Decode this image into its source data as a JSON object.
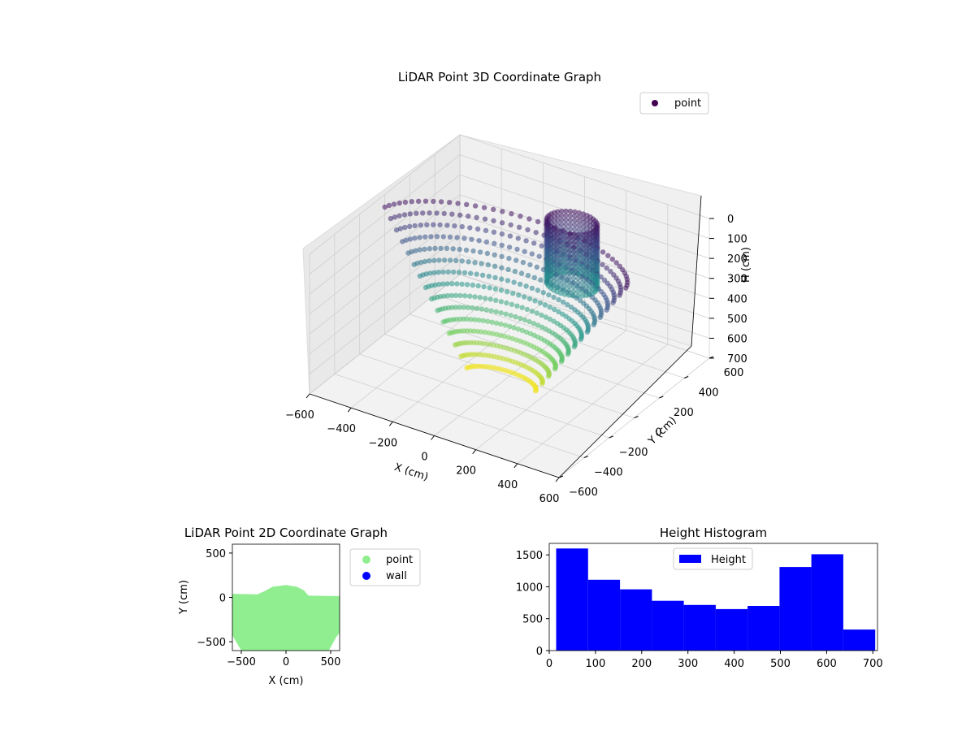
{
  "chart_data": [
    {
      "type": "scatter",
      "projection": "3d",
      "title": "LiDAR Point 3D Coordinate Graph",
      "xlabel": "X (cm)",
      "ylabel": "Y (cm)",
      "zlabel": "H (cm)",
      "xlim": [
        -600,
        600
      ],
      "ylim": [
        -600,
        600
      ],
      "zlim": [
        0,
        700
      ],
      "z_inverted": true,
      "xticks": [
        -600,
        -400,
        -200,
        0,
        200,
        400,
        600
      ],
      "yticks": [
        -600,
        -400,
        -200,
        0,
        200,
        400,
        600
      ],
      "zticks": [
        0,
        100,
        200,
        300,
        400,
        500,
        600,
        700
      ],
      "colormap": "viridis",
      "grid": true,
      "legend": {
        "position": "upper-right",
        "entries": [
          {
            "label": "point",
            "color": "#440154"
          }
        ]
      },
      "description_series": [
        {
          "name": "point",
          "shape": "curved sheet of points spanning X -600..600, heights 0..700, dark purple at the top (low H) to yellow at the bottom (high H)"
        }
      ]
    },
    {
      "type": "scatter",
      "title": "LiDAR Point 2D Coordinate Graph",
      "xlabel": "X (cm)",
      "ylabel": "Y (cm)",
      "xlim": [
        -600,
        600
      ],
      "ylim": [
        -600,
        600
      ],
      "xticks": [
        -500,
        0,
        500
      ],
      "yticks": [
        -500,
        0,
        500
      ],
      "legend": {
        "position": "outside-right",
        "entries": [
          {
            "label": "point",
            "color": "#90ee90"
          },
          {
            "label": "wall",
            "color": "#0000ff"
          }
        ]
      },
      "series": [
        {
          "name": "point",
          "color": "#90ee90",
          "outline": [
            [
              -600,
              40
            ],
            [
              -320,
              35
            ],
            [
              -240,
              70
            ],
            [
              -150,
              120
            ],
            [
              0,
              140
            ],
            [
              120,
              120
            ],
            [
              200,
              80
            ],
            [
              250,
              20
            ],
            [
              600,
              15
            ],
            [
              600,
              -400
            ],
            [
              560,
              -450
            ],
            [
              480,
              -600
            ],
            [
              -500,
              -600
            ],
            [
              -600,
              -430
            ]
          ]
        }
      ]
    },
    {
      "type": "bar",
      "subtype": "histogram",
      "title": "Height Histogram",
      "xlim": [
        0,
        710
      ],
      "ylim": [
        0,
        1680
      ],
      "xticks": [
        0,
        100,
        200,
        300,
        400,
        500,
        600,
        700
      ],
      "yticks": [
        0,
        500,
        1000,
        1500
      ],
      "legend": {
        "position": "upper-center",
        "entries": [
          {
            "label": "Height",
            "color": "#0000ff"
          }
        ]
      },
      "bin_edges": [
        15,
        84,
        153,
        222,
        291,
        360,
        429,
        498,
        567,
        636,
        705
      ],
      "values": [
        1600,
        1110,
        960,
        780,
        715,
        650,
        700,
        1310,
        1510,
        330
      ],
      "color": "#0000ff"
    }
  ]
}
